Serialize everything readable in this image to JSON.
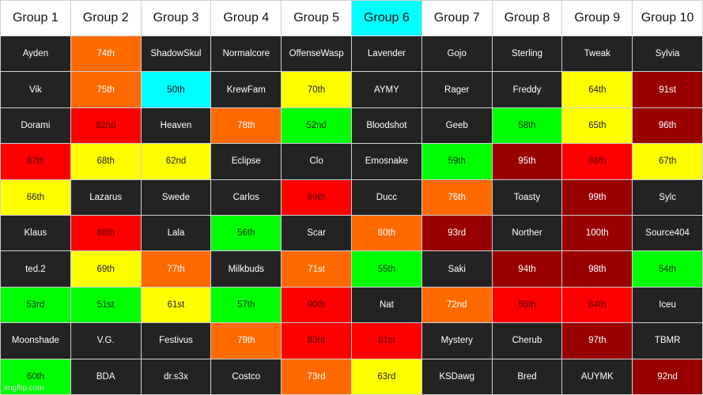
{
  "headers": [
    {
      "text": "Group 1",
      "color": "white"
    },
    {
      "text": "Group 2",
      "color": "white"
    },
    {
      "text": "Group 3",
      "color": "white"
    },
    {
      "text": "Group 4",
      "color": "white"
    },
    {
      "text": "Group 5",
      "color": "white"
    },
    {
      "text": "Group 6",
      "color": "cyan"
    },
    {
      "text": "Group 7",
      "color": "white"
    },
    {
      "text": "Group 8",
      "color": "white"
    },
    {
      "text": "Group 9",
      "color": "white"
    },
    {
      "text": "Group 10",
      "color": "white"
    }
  ],
  "rows": [
    [
      [
        "Ayden",
        "dark"
      ],
      [
        "74th",
        "orange"
      ],
      [
        "ShadowSkul",
        "dark"
      ],
      [
        "Normalcore",
        "dark"
      ],
      [
        "OffenseWasp",
        "dark"
      ],
      [
        "Lavender",
        "dark"
      ],
      [
        "Gojo",
        "dark"
      ],
      [
        "Sterling",
        "dark"
      ],
      [
        "Tweak",
        "dark"
      ],
      [
        "Sylvia",
        "dark"
      ]
    ],
    [
      [
        "Vik",
        "dark"
      ],
      [
        "75th",
        "orange"
      ],
      [
        "50th",
        "cyan"
      ],
      [
        "KrewFam",
        "dark"
      ],
      [
        "70th",
        "yellow"
      ],
      [
        "AYMY",
        "dark"
      ],
      [
        "Rager",
        "dark"
      ],
      [
        "Freddy",
        "dark"
      ],
      [
        "64th",
        "yellow"
      ],
      [
        "91st",
        "dkred"
      ]
    ],
    [
      [
        "Dorami",
        "dark"
      ],
      [
        "82nd",
        "red"
      ],
      [
        "Heaven",
        "dark"
      ],
      [
        "78th",
        "orange"
      ],
      [
        "52nd",
        "green"
      ],
      [
        "Bloodshot",
        "dark"
      ],
      [
        "Geeb",
        "dark"
      ],
      [
        "58th",
        "green"
      ],
      [
        "65th",
        "yellow"
      ],
      [
        "96th",
        "dkred"
      ]
    ],
    [
      [
        "87th",
        "red"
      ],
      [
        "68th",
        "yellow"
      ],
      [
        "62nd",
        "yellow"
      ],
      [
        "Eclipse",
        "dark"
      ],
      [
        "Clo",
        "dark"
      ],
      [
        "Emosnake",
        "dark"
      ],
      [
        "59th",
        "green"
      ],
      [
        "95th",
        "dkred"
      ],
      [
        "86th",
        "red"
      ],
      [
        "67th",
        "yellow"
      ]
    ],
    [
      [
        "66th",
        "yellow"
      ],
      [
        "Lazarus",
        "dark"
      ],
      [
        "Swede",
        "dark"
      ],
      [
        "Carlos",
        "dark"
      ],
      [
        "89th",
        "red"
      ],
      [
        "Ducc",
        "dark"
      ],
      [
        "76th",
        "orange"
      ],
      [
        "Toasty",
        "dark"
      ],
      [
        "99th",
        "dkred"
      ],
      [
        "Sylc",
        "dark"
      ]
    ],
    [
      [
        "Klaus",
        "dark"
      ],
      [
        "88th",
        "red"
      ],
      [
        "Lala",
        "dark"
      ],
      [
        "56th",
        "green"
      ],
      [
        "Scar",
        "dark"
      ],
      [
        "80th",
        "orange"
      ],
      [
        "93rd",
        "dkred"
      ],
      [
        "Norther",
        "dark"
      ],
      [
        "100th",
        "dkred"
      ],
      [
        "Source404",
        "dark"
      ]
    ],
    [
      [
        "ted.2",
        "dark"
      ],
      [
        "69th",
        "yellow"
      ],
      [
        "77th",
        "orange"
      ],
      [
        "Milkbuds",
        "dark"
      ],
      [
        "71st",
        "orange"
      ],
      [
        "55th",
        "green"
      ],
      [
        "Saki",
        "dark"
      ],
      [
        "94th",
        "dkred"
      ],
      [
        "98th",
        "dkred"
      ],
      [
        "54th",
        "green"
      ]
    ],
    [
      [
        "53rd",
        "green"
      ],
      [
        "51st",
        "green"
      ],
      [
        "61st",
        "yellow"
      ],
      [
        "57th",
        "green"
      ],
      [
        "90th",
        "red"
      ],
      [
        "Nat",
        "dark"
      ],
      [
        "72nd",
        "orange"
      ],
      [
        "85th",
        "red"
      ],
      [
        "84th",
        "red"
      ],
      [
        "Iceu",
        "dark"
      ]
    ],
    [
      [
        "Moonshade",
        "dark"
      ],
      [
        "V.G.",
        "dark"
      ],
      [
        "Festivus",
        "dark"
      ],
      [
        "79th",
        "orange"
      ],
      [
        "83rd",
        "red"
      ],
      [
        "81st",
        "red"
      ],
      [
        "Mystery",
        "dark"
      ],
      [
        "Cherub",
        "dark"
      ],
      [
        "97th",
        "dkred"
      ],
      [
        "TBMR",
        "dark"
      ]
    ],
    [
      [
        "60th",
        "green"
      ],
      [
        "BDA",
        "dark"
      ],
      [
        "dr.s3x",
        "dark"
      ],
      [
        "Costco",
        "dark"
      ],
      [
        "73rd",
        "orange"
      ],
      [
        "63rd",
        "yellow"
      ],
      [
        "KSDawg",
        "dark"
      ],
      [
        "Bred",
        "dark"
      ],
      [
        "AUYMK",
        "dark"
      ],
      [
        "92nd",
        "dkred"
      ]
    ]
  ],
  "watermark": "imgflip.com"
}
